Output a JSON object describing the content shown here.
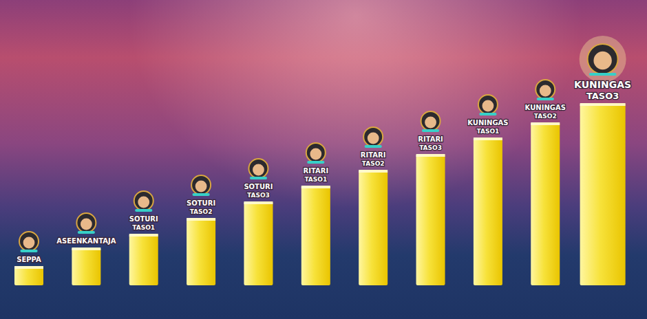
{
  "chart_data": {
    "type": "bar",
    "categories": [
      "SEPPA",
      "ASEENKANTAJA",
      "SOTURI TASO1",
      "SOTURI TASO2",
      "SOTURI TASO3",
      "RITARI TASO1",
      "RITARI TASO2",
      "RITARI TASO3",
      "KUNINGAS TASO1",
      "KUNINGAS TASO2",
      "KUNINGAS TASO3"
    ],
    "values": [
      28,
      55,
      75,
      98,
      122,
      145,
      168,
      191,
      215,
      237,
      265
    ],
    "color": "#f7e23a",
    "ylim": [
      0,
      280
    ],
    "tick_labels": false,
    "grid": false
  }
}
